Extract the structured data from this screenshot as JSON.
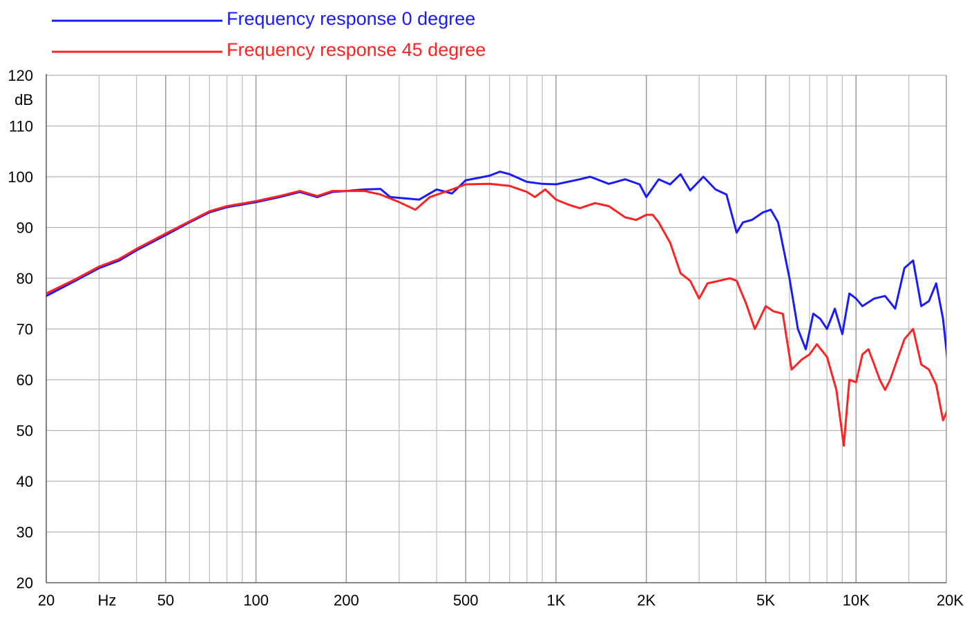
{
  "chart_data": {
    "type": "line",
    "x_scale": "log",
    "xlim": [
      20,
      20000
    ],
    "ylim": [
      20,
      120
    ],
    "grid": true,
    "legend_position": "top-left",
    "ylabel": "dB",
    "xlabel": "Hz",
    "y_ticks": [
      20,
      30,
      40,
      50,
      60,
      70,
      80,
      90,
      100,
      110,
      120
    ],
    "x_ticks": [
      {
        "value": 20,
        "label": "20"
      },
      {
        "value": 50,
        "label": "50"
      },
      {
        "value": 100,
        "label": "100"
      },
      {
        "value": 200,
        "label": "200"
      },
      {
        "value": 500,
        "label": "500"
      },
      {
        "value": 1000,
        "label": "1K"
      },
      {
        "value": 2000,
        "label": "2K"
      },
      {
        "value": 5000,
        "label": "5K"
      },
      {
        "value": 10000,
        "label": "10K"
      },
      {
        "value": 20000,
        "label": "20K"
      }
    ],
    "x_minor_grid": [
      30,
      40,
      60,
      70,
      80,
      90,
      300,
      400,
      600,
      700,
      800,
      900,
      3000,
      4000,
      6000,
      7000,
      8000,
      9000,
      15000
    ],
    "series": [
      {
        "name": "Frequency response 0 degree",
        "color": "#1a1aff",
        "points": [
          [
            20,
            76.5
          ],
          [
            25,
            79.5
          ],
          [
            30,
            82
          ],
          [
            35,
            83.5
          ],
          [
            40,
            85.5
          ],
          [
            50,
            88.5
          ],
          [
            60,
            91
          ],
          [
            70,
            93
          ],
          [
            80,
            94
          ],
          [
            100,
            95
          ],
          [
            120,
            96
          ],
          [
            140,
            97
          ],
          [
            160,
            96
          ],
          [
            180,
            97
          ],
          [
            200,
            97.2
          ],
          [
            230,
            97.5
          ],
          [
            260,
            97.6
          ],
          [
            280,
            96
          ],
          [
            350,
            95.5
          ],
          [
            400,
            97.5
          ],
          [
            450,
            96.7
          ],
          [
            500,
            99.3
          ],
          [
            600,
            100.2
          ],
          [
            650,
            101
          ],
          [
            700,
            100.5
          ],
          [
            800,
            99
          ],
          [
            900,
            98.6
          ],
          [
            1000,
            98.5
          ],
          [
            1200,
            99.5
          ],
          [
            1300,
            100
          ],
          [
            1500,
            98.6
          ],
          [
            1700,
            99.5
          ],
          [
            1900,
            98.5
          ],
          [
            2000,
            96
          ],
          [
            2200,
            99.5
          ],
          [
            2400,
            98.5
          ],
          [
            2600,
            100.5
          ],
          [
            2800,
            97.3
          ],
          [
            3100,
            100
          ],
          [
            3400,
            97.5
          ],
          [
            3700,
            96.5
          ],
          [
            4000,
            89
          ],
          [
            4200,
            91
          ],
          [
            4500,
            91.5
          ],
          [
            4900,
            93
          ],
          [
            5200,
            93.5
          ],
          [
            5500,
            91
          ],
          [
            6000,
            80
          ],
          [
            6400,
            70
          ],
          [
            6800,
            66
          ],
          [
            7200,
            73
          ],
          [
            7600,
            72
          ],
          [
            8000,
            70
          ],
          [
            8500,
            74
          ],
          [
            9000,
            69
          ],
          [
            9500,
            77
          ],
          [
            10000,
            76
          ],
          [
            10500,
            74.5
          ],
          [
            11500,
            76
          ],
          [
            12500,
            76.5
          ],
          [
            13500,
            74
          ],
          [
            14500,
            82
          ],
          [
            15500,
            83.5
          ],
          [
            16500,
            74.5
          ],
          [
            17500,
            75.5
          ],
          [
            18500,
            79
          ],
          [
            19500,
            72
          ],
          [
            20500,
            60
          ],
          [
            21500,
            65.5
          ]
        ]
      },
      {
        "name": "Frequency response 45 degree",
        "color": "#ff2222",
        "points": [
          [
            20,
            77
          ],
          [
            25,
            79.8
          ],
          [
            30,
            82.3
          ],
          [
            35,
            83.8
          ],
          [
            40,
            85.8
          ],
          [
            50,
            88.8
          ],
          [
            60,
            91.2
          ],
          [
            70,
            93.2
          ],
          [
            80,
            94.2
          ],
          [
            100,
            95.2
          ],
          [
            120,
            96.2
          ],
          [
            140,
            97.2
          ],
          [
            160,
            96.2
          ],
          [
            180,
            97.2
          ],
          [
            200,
            97.2
          ],
          [
            230,
            97.2
          ],
          [
            260,
            96.5
          ],
          [
            300,
            95
          ],
          [
            340,
            93.5
          ],
          [
            380,
            96
          ],
          [
            450,
            97.5
          ],
          [
            500,
            98.5
          ],
          [
            600,
            98.6
          ],
          [
            700,
            98.2
          ],
          [
            800,
            97
          ],
          [
            850,
            96
          ],
          [
            920,
            97.5
          ],
          [
            1000,
            95.5
          ],
          [
            1100,
            94.5
          ],
          [
            1200,
            93.8
          ],
          [
            1350,
            94.8
          ],
          [
            1500,
            94.2
          ],
          [
            1700,
            92
          ],
          [
            1850,
            91.5
          ],
          [
            2000,
            92.5
          ],
          [
            2100,
            92.5
          ],
          [
            2200,
            91
          ],
          [
            2400,
            87
          ],
          [
            2600,
            81
          ],
          [
            2800,
            79.5
          ],
          [
            3000,
            76
          ],
          [
            3200,
            79
          ],
          [
            3500,
            79.5
          ],
          [
            3800,
            80
          ],
          [
            4000,
            79.5
          ],
          [
            4300,
            75
          ],
          [
            4600,
            70
          ],
          [
            5000,
            74.5
          ],
          [
            5300,
            73.5
          ],
          [
            5700,
            73
          ],
          [
            6100,
            62
          ],
          [
            6600,
            64
          ],
          [
            7000,
            65
          ],
          [
            7400,
            67
          ],
          [
            8000,
            64.5
          ],
          [
            8600,
            58
          ],
          [
            9100,
            47
          ],
          [
            9500,
            60
          ],
          [
            10000,
            59.5
          ],
          [
            10500,
            65
          ],
          [
            11000,
            66
          ],
          [
            11500,
            63
          ],
          [
            12000,
            60
          ],
          [
            12500,
            58
          ],
          [
            13000,
            60
          ],
          [
            14500,
            68
          ],
          [
            15500,
            70
          ],
          [
            16500,
            63
          ],
          [
            17500,
            62
          ],
          [
            18500,
            59
          ],
          [
            19500,
            52
          ],
          [
            20500,
            55
          ],
          [
            21500,
            53
          ]
        ]
      }
    ]
  }
}
